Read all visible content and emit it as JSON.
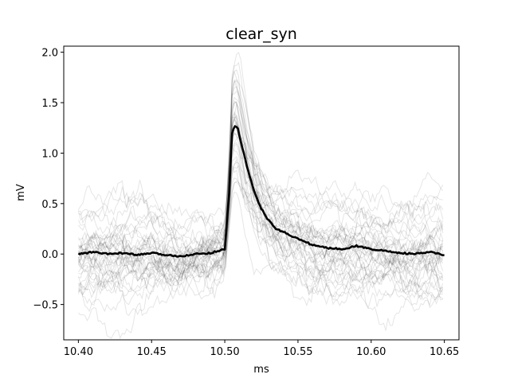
{
  "chart_data": {
    "type": "line",
    "title": "clear_syn",
    "xlabel": "ms",
    "ylabel": "mV",
    "xlim": [
      10.39,
      10.66
    ],
    "ylim": [
      -0.85,
      2.06
    ],
    "xticks": [
      10.4,
      10.45,
      10.5,
      10.55,
      10.6,
      10.65
    ],
    "xtick_labels": [
      "10.40",
      "10.45",
      "10.50",
      "10.55",
      "10.60",
      "10.65"
    ],
    "yticks": [
      -0.5,
      0.0,
      0.5,
      1.0,
      1.5,
      2.0
    ],
    "ytick_labels": [
      "−0.5",
      "0.0",
      "0.5",
      "1.0",
      "1.5",
      "2.0"
    ],
    "grid": false,
    "colors": {
      "mean": "#000000",
      "traces": "#000000"
    },
    "trace_count": 40,
    "mean_trace": {
      "x": [
        10.4,
        10.41,
        10.42,
        10.43,
        10.44,
        10.45,
        10.46,
        10.47,
        10.48,
        10.49,
        10.5,
        10.503,
        10.505,
        10.507,
        10.509,
        10.512,
        10.515,
        10.52,
        10.525,
        10.53,
        10.535,
        10.54,
        10.55,
        10.56,
        10.57,
        10.58,
        10.59,
        10.6,
        10.61,
        10.62,
        10.63,
        10.64,
        10.65
      ],
      "y": [
        0.0,
        0.02,
        0.0,
        0.01,
        -0.01,
        0.01,
        -0.01,
        -0.02,
        0.0,
        0.01,
        0.05,
        0.6,
        1.2,
        1.27,
        1.24,
        1.05,
        0.88,
        0.62,
        0.45,
        0.33,
        0.25,
        0.22,
        0.15,
        0.09,
        0.06,
        0.05,
        0.08,
        0.05,
        0.03,
        0.01,
        0.0,
        0.02,
        -0.01
      ]
    }
  }
}
